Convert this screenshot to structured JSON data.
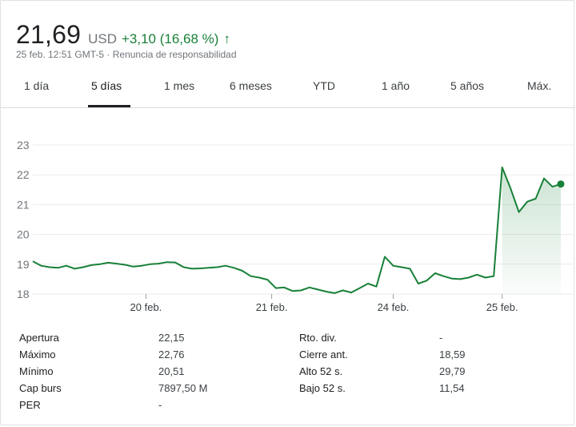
{
  "quote": {
    "price": "21,69",
    "currency": "USD",
    "change": "+3,10 (16,68 %)",
    "timestamp": "25 feb. 12:51 GMT-5 · Renuncia de responsabilidad",
    "trend_color": "#188038",
    "arrow_icon": "arrow-up-icon"
  },
  "tabs": [
    {
      "label": "1 día",
      "active": false
    },
    {
      "label": "5 días",
      "active": true
    },
    {
      "label": "1 mes",
      "active": false
    },
    {
      "label": "6 meses",
      "active": false
    },
    {
      "label": "YTD",
      "active": false
    },
    {
      "label": "1 año",
      "active": false
    },
    {
      "label": "5 años",
      "active": false
    },
    {
      "label": "Máx.",
      "active": false
    }
  ],
  "chart_data": {
    "type": "line",
    "title": "",
    "xlabel": "",
    "ylabel": "",
    "ylim": [
      18,
      23
    ],
    "yticks": [
      "23",
      "22",
      "21",
      "20",
      "19",
      "18"
    ],
    "xticks": [
      "20 feb.",
      "21 feb.",
      "24 feb.",
      "25 feb."
    ],
    "grid": true,
    "series_color": "#188038",
    "series": [
      {
        "values": [
          19.1,
          18.95,
          18.9,
          18.88,
          18.95,
          18.85,
          18.9,
          18.97,
          19.0,
          19.05,
          19.02,
          18.98,
          18.92,
          18.95,
          19.0,
          19.02,
          19.07,
          19.06,
          18.9,
          18.85,
          18.86,
          18.88,
          18.9,
          18.95,
          18.88,
          18.78,
          18.6,
          18.55,
          18.48,
          18.2,
          18.22,
          18.1,
          18.12,
          18.22,
          18.15,
          18.08,
          18.03,
          18.12,
          18.05,
          18.2,
          18.35,
          18.25,
          19.25,
          18.95,
          18.9,
          18.85,
          18.35,
          18.45,
          18.7,
          18.6,
          18.52,
          18.5,
          18.55,
          18.65,
          18.55,
          18.6,
          22.25,
          21.55,
          20.75,
          21.1,
          21.2,
          21.88,
          21.6,
          21.69
        ]
      }
    ]
  },
  "stats": {
    "left": [
      {
        "label": "Apertura",
        "value": "22,15"
      },
      {
        "label": "Máximo",
        "value": "22,76"
      },
      {
        "label": "Mínimo",
        "value": "20,51"
      },
      {
        "label": "Cap burs",
        "value": "7897,50 M"
      },
      {
        "label": "PER",
        "value": "-"
      }
    ],
    "right": [
      {
        "label": "Rto. div.",
        "value": "-"
      },
      {
        "label": "Cierre ant.",
        "value": "18,59"
      },
      {
        "label": "Alto 52 s.",
        "value": "29,79"
      },
      {
        "label": "Bajo 52 s.",
        "value": "11,54"
      }
    ]
  }
}
